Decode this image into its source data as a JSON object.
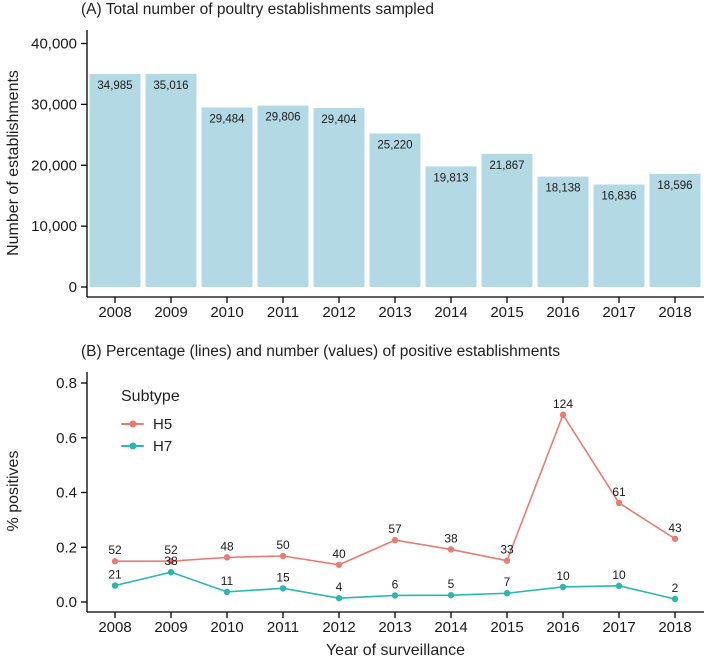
{
  "chart_data": [
    {
      "type": "bar",
      "panel": "A",
      "title": "(A) Total number of poultry establishments sampled",
      "xlabel": "",
      "ylabel": "Number of establishments",
      "categories": [
        "2008",
        "2009",
        "2010",
        "2011",
        "2012",
        "2013",
        "2014",
        "2015",
        "2016",
        "2017",
        "2018"
      ],
      "values": [
        34985,
        35016,
        29484,
        29806,
        29404,
        25220,
        19813,
        21867,
        18138,
        16836,
        18596
      ],
      "value_labels": [
        "34,985",
        "35,016",
        "29,484",
        "29,806",
        "29,404",
        "25,220",
        "19,813",
        "21,867",
        "18,138",
        "16,836",
        "18,596"
      ],
      "ylim": [
        0,
        40000
      ],
      "yticks": [
        0,
        10000,
        20000,
        30000,
        40000
      ],
      "ytick_labels": [
        "0",
        "10,000",
        "20,000",
        "30,000",
        "40,000"
      ],
      "grid": false,
      "bar_color": "#b3d9e5",
      "axis_color": "#000000",
      "text_color": "#1a1a1a"
    },
    {
      "type": "line",
      "panel": "B",
      "title": "(B) Percentage (lines) and number (values) of positive establishments",
      "xlabel": "Year of surveillance",
      "ylabel": "% positives",
      "categories": [
        "2008",
        "2009",
        "2010",
        "2011",
        "2012",
        "2013",
        "2014",
        "2015",
        "2016",
        "2017",
        "2018"
      ],
      "series": [
        {
          "name": "H5",
          "color": "#ed7a70",
          "values": [
            0.149,
            0.149,
            0.163,
            0.168,
            0.136,
            0.226,
            0.192,
            0.151,
            0.684,
            0.362,
            0.231
          ],
          "point_labels": [
            "52",
            "52",
            "48",
            "50",
            "40",
            "57",
            "38",
            "33",
            "124",
            "61",
            "43"
          ]
        },
        {
          "name": "H7",
          "color": "#28b8b1",
          "values": [
            0.06,
            0.109,
            0.037,
            0.05,
            0.014,
            0.024,
            0.025,
            0.032,
            0.055,
            0.059,
            0.011
          ],
          "point_labels": [
            "21",
            "38",
            "11",
            "15",
            "4",
            "6",
            "5",
            "7",
            "10",
            "10",
            "2"
          ]
        }
      ],
      "ylim": [
        0,
        0.8
      ],
      "yticks": [
        0.0,
        0.2,
        0.4,
        0.6,
        0.8
      ],
      "ytick_labels": [
        "0.0",
        "0.2",
        "0.4",
        "0.6",
        "0.8"
      ],
      "grid": false,
      "legend_title": "Subtype",
      "legend_position": "top-left-inside",
      "axis_color": "#000000",
      "text_color": "#1a1a1a"
    }
  ]
}
